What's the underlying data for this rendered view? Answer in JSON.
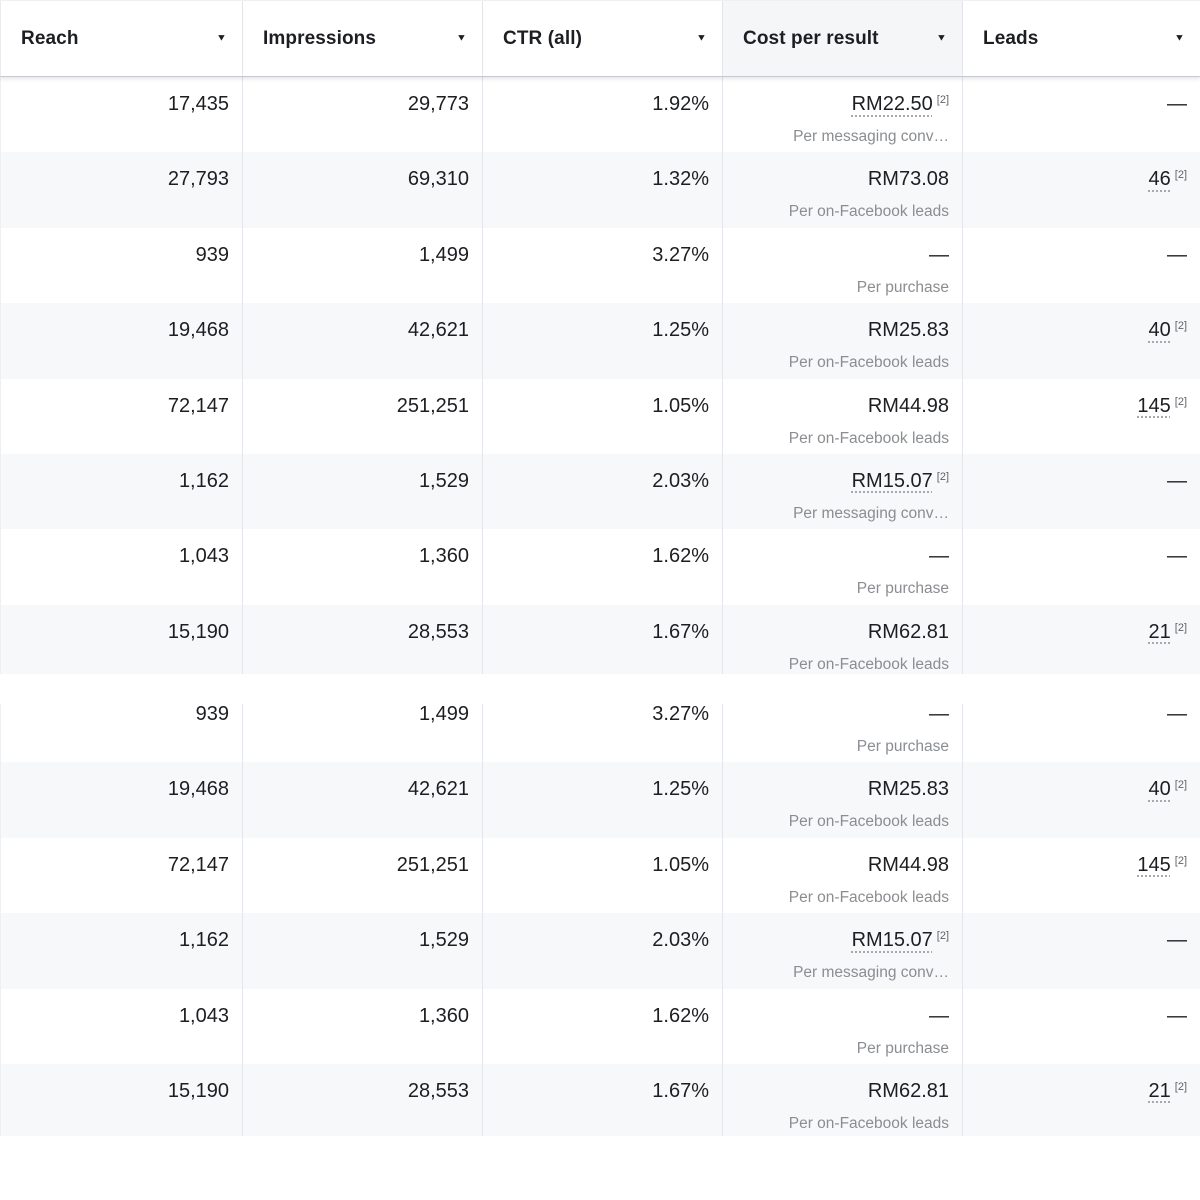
{
  "table": {
    "sort_arrow": "▼",
    "columns": [
      {
        "label": "Reach"
      },
      {
        "label": "Impressions"
      },
      {
        "label": "CTR (all)"
      },
      {
        "label": "Cost per result",
        "highlighted": true
      },
      {
        "label": "Leads"
      }
    ],
    "sections": [
      {
        "rows": [
          {
            "reach": "17,435",
            "impressions": "29,773",
            "ctr": "1.92%",
            "cost_value": "RM22.50",
            "cost_foot": "[2]",
            "cost_sub": "Per messaging conv…",
            "leads_value": "—",
            "leads_foot": "",
            "tint": false
          },
          {
            "reach": "27,793",
            "impressions": "69,310",
            "ctr": "1.32%",
            "cost_value": "RM73.08",
            "cost_foot": "",
            "cost_sub": "Per on-Facebook leads",
            "leads_value": "46",
            "leads_foot": "[2]",
            "tint": true
          },
          {
            "reach": "939",
            "impressions": "1,499",
            "ctr": "3.27%",
            "cost_value": "—",
            "cost_foot": "",
            "cost_sub": "Per purchase",
            "leads_value": "—",
            "leads_foot": "",
            "tint": false
          },
          {
            "reach": "19,468",
            "impressions": "42,621",
            "ctr": "1.25%",
            "cost_value": "RM25.83",
            "cost_foot": "",
            "cost_sub": "Per on-Facebook leads",
            "leads_value": "40",
            "leads_foot": "[2]",
            "tint": true
          },
          {
            "reach": "72,147",
            "impressions": "251,251",
            "ctr": "1.05%",
            "cost_value": "RM44.98",
            "cost_foot": "",
            "cost_sub": "Per on-Facebook leads",
            "leads_value": "145",
            "leads_foot": "[2]",
            "tint": false
          },
          {
            "reach": "1,162",
            "impressions": "1,529",
            "ctr": "2.03%",
            "cost_value": "RM15.07",
            "cost_foot": "[2]",
            "cost_sub": "Per messaging conv…",
            "leads_value": "—",
            "leads_foot": "",
            "tint": true
          },
          {
            "reach": "1,043",
            "impressions": "1,360",
            "ctr": "1.62%",
            "cost_value": "—",
            "cost_foot": "",
            "cost_sub": "Per purchase",
            "leads_value": "—",
            "leads_foot": "",
            "tint": false
          },
          {
            "reach": "15,190",
            "impressions": "28,553",
            "ctr": "1.67%",
            "cost_value": "RM62.81",
            "cost_foot": "",
            "cost_sub": "Per on-Facebook leads",
            "leads_value": "21",
            "leads_foot": "[2]",
            "tint": true
          }
        ]
      },
      {
        "rows": [
          {
            "reach": "939",
            "impressions": "1,499",
            "ctr": "3.27%",
            "cost_value": "—",
            "cost_foot": "",
            "cost_sub": "Per purchase",
            "leads_value": "—",
            "leads_foot": "",
            "tint": false
          },
          {
            "reach": "19,468",
            "impressions": "42,621",
            "ctr": "1.25%",
            "cost_value": "RM25.83",
            "cost_foot": "",
            "cost_sub": "Per on-Facebook leads",
            "leads_value": "40",
            "leads_foot": "[2]",
            "tint": true
          },
          {
            "reach": "72,147",
            "impressions": "251,251",
            "ctr": "1.05%",
            "cost_value": "RM44.98",
            "cost_foot": "",
            "cost_sub": "Per on-Facebook leads",
            "leads_value": "145",
            "leads_foot": "[2]",
            "tint": false
          },
          {
            "reach": "1,162",
            "impressions": "1,529",
            "ctr": "2.03%",
            "cost_value": "RM15.07",
            "cost_foot": "[2]",
            "cost_sub": "Per messaging conv…",
            "leads_value": "—",
            "leads_foot": "",
            "tint": true
          },
          {
            "reach": "1,043",
            "impressions": "1,360",
            "ctr": "1.62%",
            "cost_value": "—",
            "cost_foot": "",
            "cost_sub": "Per purchase",
            "leads_value": "—",
            "leads_foot": "",
            "tint": false
          },
          {
            "reach": "15,190",
            "impressions": "28,553",
            "ctr": "1.67%",
            "cost_value": "RM62.81",
            "cost_foot": "",
            "cost_sub": "Per on-Facebook leads",
            "leads_value": "21",
            "leads_foot": "[2]",
            "tint": true
          }
        ]
      }
    ]
  },
  "colors": {
    "text": "#1c1e21",
    "secondary_text": "#8a8d91",
    "row_tint": "#f7f8fa",
    "header_highlight": "#f5f6f7",
    "divider": "#e4e6eb",
    "header_border": "#c6c9ce"
  }
}
